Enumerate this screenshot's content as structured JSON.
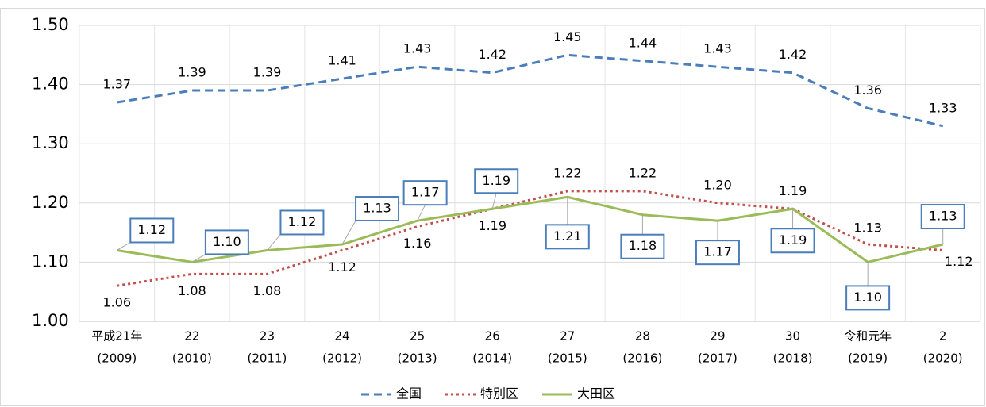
{
  "chart_data": {
    "type": "line",
    "categories": [
      [
        "平成21年",
        "(2009)"
      ],
      [
        "22",
        "(2010)"
      ],
      [
        "23",
        "(2011)"
      ],
      [
        "24",
        "(2012)"
      ],
      [
        "25",
        "(2013)"
      ],
      [
        "26",
        "(2014)"
      ],
      [
        "27",
        "(2015)"
      ],
      [
        "28",
        "(2016)"
      ],
      [
        "29",
        "(2017)"
      ],
      [
        "30",
        "(2018)"
      ],
      [
        "令和元年",
        "(2019)"
      ],
      [
        "2",
        "(2020)"
      ]
    ],
    "series": [
      {
        "name": "全国",
        "color": "#4a7ebb",
        "dash": "dashed",
        "values": [
          1.37,
          1.39,
          1.39,
          1.41,
          1.43,
          1.42,
          1.45,
          1.44,
          1.43,
          1.42,
          1.36,
          1.33
        ],
        "value_labels": [
          "1.37",
          "1.39",
          "1.39",
          "1.41",
          "1.43",
          "1.42",
          "1.45",
          "1.44",
          "1.43",
          "1.42",
          "1.36",
          "1.33"
        ]
      },
      {
        "name": "特別区",
        "color": "#c0504d",
        "dash": "dotted",
        "values": [
          1.06,
          1.08,
          1.08,
          1.12,
          1.16,
          1.19,
          1.22,
          1.22,
          1.2,
          1.19,
          1.13,
          1.12
        ],
        "value_labels": [
          "1.06",
          "1.08",
          "1.08",
          "1.12",
          "1.16",
          "1.19",
          "1.22",
          "1.22",
          "1.20",
          "1.19",
          "1.13",
          "1.12"
        ]
      },
      {
        "name": "大田区",
        "color": "#9bbb59",
        "dash": "solid",
        "values": [
          1.12,
          1.1,
          1.12,
          1.13,
          1.17,
          1.19,
          1.21,
          1.18,
          1.17,
          1.19,
          1.1,
          1.13
        ],
        "value_labels": [
          "1.12",
          "1.10",
          "1.12",
          "1.13",
          "1.17",
          "1.19",
          "1.21",
          "1.18",
          "1.17",
          "1.19",
          "1.10",
          "1.13"
        ]
      }
    ],
    "ylim": [
      1.0,
      1.5
    ],
    "yticks": [
      {
        "value": 1.0,
        "label": "1.00"
      },
      {
        "value": 1.1,
        "label": "1.10"
      },
      {
        "value": 1.2,
        "label": "1.20"
      },
      {
        "value": 1.3,
        "label": "1.30"
      },
      {
        "value": 1.4,
        "label": "1.40"
      },
      {
        "value": 1.5,
        "label": "1.50"
      }
    ],
    "grid": true,
    "legend": "bottom"
  }
}
